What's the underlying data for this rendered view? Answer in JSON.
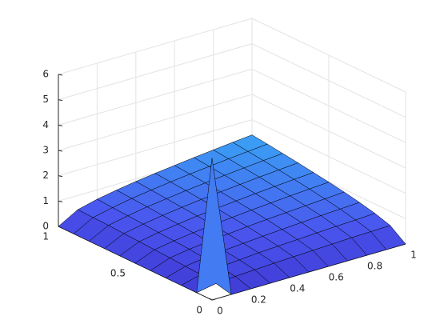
{
  "chart_data": {
    "type": "surface",
    "x": [
      0,
      0.1,
      0.2,
      0.3,
      0.4,
      0.5,
      0.6,
      0.7,
      0.8,
      0.9,
      1
    ],
    "y": [
      0,
      0.1,
      0.2,
      0.3,
      0.4,
      0.5,
      0.6,
      0.7,
      0.8,
      0.9,
      1
    ],
    "z": [
      [
        5.6,
        0,
        0,
        0,
        0,
        0,
        0,
        0,
        0,
        0,
        0
      ],
      [
        0,
        0.14,
        0.2,
        0.24,
        0.28,
        0.31,
        0.34,
        0.37,
        0.4,
        0.42,
        0.44
      ],
      [
        0,
        0.2,
        0.28,
        0.34,
        0.4,
        0.44,
        0.48,
        0.52,
        0.56,
        0.59,
        0.63
      ],
      [
        0,
        0.24,
        0.34,
        0.42,
        0.48,
        0.54,
        0.59,
        0.64,
        0.69,
        0.73,
        0.77
      ],
      [
        0,
        0.28,
        0.4,
        0.48,
        0.56,
        0.63,
        0.69,
        0.74,
        0.79,
        0.84,
        0.89
      ],
      [
        0,
        0.31,
        0.44,
        0.54,
        0.63,
        0.7,
        0.77,
        0.83,
        0.89,
        0.94,
        0.99
      ],
      [
        0,
        0.34,
        0.48,
        0.59,
        0.69,
        0.77,
        0.84,
        0.91,
        0.97,
        1.03,
        1.08
      ],
      [
        0,
        0.37,
        0.52,
        0.64,
        0.74,
        0.83,
        0.91,
        0.98,
        1.05,
        1.11,
        1.17
      ],
      [
        0,
        0.4,
        0.56,
        0.69,
        0.79,
        0.89,
        0.97,
        1.05,
        1.12,
        1.19,
        1.25
      ],
      [
        0,
        0.42,
        0.59,
        0.73,
        0.84,
        0.94,
        1.03,
        1.11,
        1.19,
        1.26,
        1.33
      ],
      [
        0,
        0.44,
        0.63,
        0.77,
        0.89,
        0.99,
        1.08,
        1.17,
        1.25,
        1.33,
        1.4
      ]
    ],
    "xlim": [
      0,
      1
    ],
    "ylim": [
      0,
      1
    ],
    "zlim": [
      0,
      6
    ],
    "xticks": [
      0,
      0.2,
      0.4,
      0.6,
      0.8,
      1
    ],
    "yticks": [
      0,
      0.5,
      1
    ],
    "zticks": [
      0,
      1,
      2,
      3,
      4,
      5,
      6
    ],
    "grid": true,
    "colormap": [
      "#3b2fc9",
      "#4a55ee",
      "#3aa0f5"
    ]
  }
}
